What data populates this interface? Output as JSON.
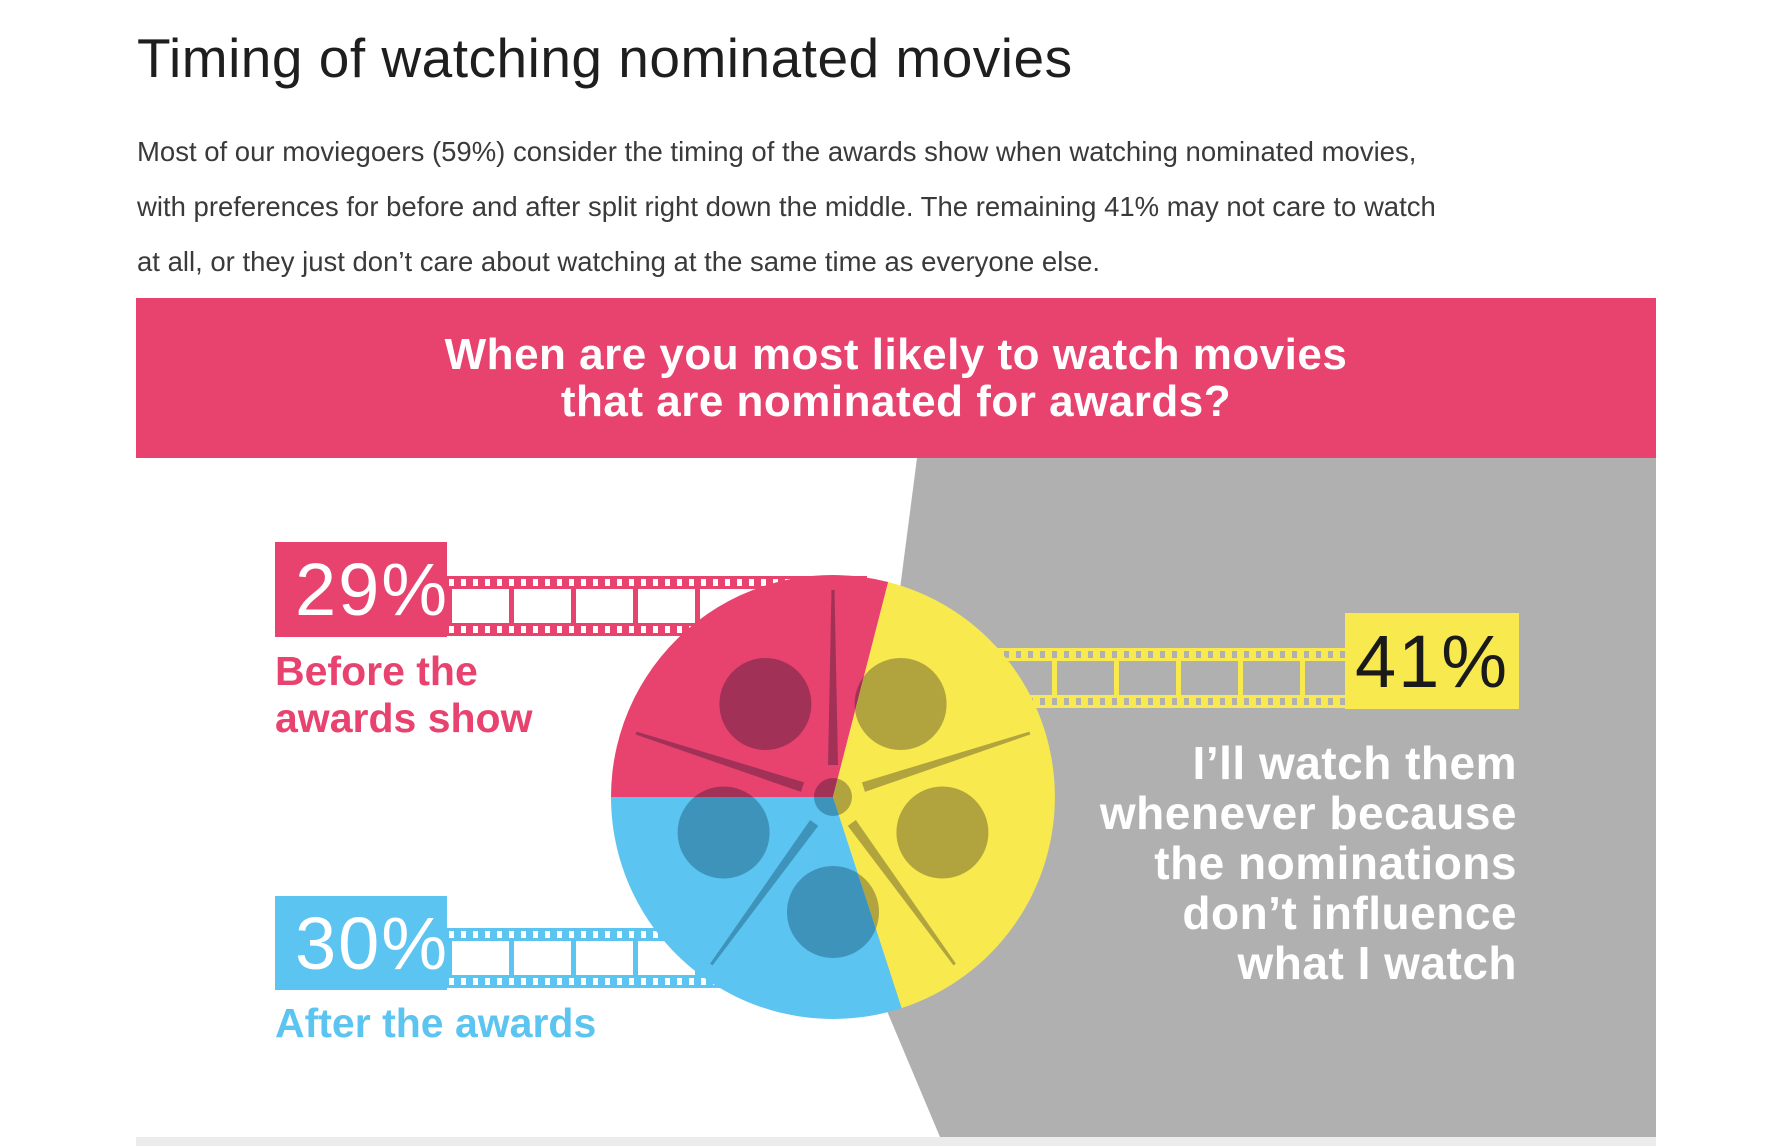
{
  "header": {
    "title": "Timing of watching nominated movies",
    "intro_lines": [
      "Most of our moviegoers (59%) consider the timing of the awards show when watching nominated movies,",
      "with preferences for before and after split right down the middle. The remaining 41% may not care to watch",
      "at all, or they just don’t care about watching at the same time as everyone else."
    ]
  },
  "banner": {
    "question_lines": [
      "When are you most likely to watch movies",
      "that are nominated for awards?"
    ]
  },
  "chart_data": {
    "type": "pie",
    "title": "When are you most likely to watch movies that are nominated for awards?",
    "unit": "%",
    "start_angle_deg": -90,
    "legend_position": "callouts",
    "slices": [
      {
        "label": "Before the awards show",
        "value": 29,
        "color": "#E8426F",
        "hole_color": "#A23158"
      },
      {
        "label": "I’ll watch them whenever because the nominations don’t influence what I watch",
        "value": 41,
        "color": "#F7E94E",
        "hole_color": "#B1A43E"
      },
      {
        "label": "After the awards",
        "value": 30,
        "color": "#5BC4F0",
        "hole_color": "#3E93BA"
      }
    ]
  },
  "callouts": {
    "before": {
      "value_label": "29%",
      "label_lines": [
        "Before the",
        "awards show"
      ],
      "color": "#E8426F"
    },
    "after": {
      "value_label": "30%",
      "label_lines": [
        "After the awards"
      ],
      "color": "#5BC4F0"
    },
    "whenever": {
      "value_label": "41%",
      "label_lines": [
        "I’ll watch them",
        "whenever because",
        "the nominations",
        "don’t influence",
        "what I watch"
      ],
      "box_color": "#F7E94E",
      "text_color": "#FFFFFF"
    }
  },
  "palette": {
    "pink": "#E8426F",
    "blue": "#5BC4F0",
    "yellow": "#F7E94E",
    "gray": "#B0B0B0",
    "band": "#ECECEC",
    "title_color": "#1E1E1E",
    "body_color": "#3A3A3A"
  }
}
